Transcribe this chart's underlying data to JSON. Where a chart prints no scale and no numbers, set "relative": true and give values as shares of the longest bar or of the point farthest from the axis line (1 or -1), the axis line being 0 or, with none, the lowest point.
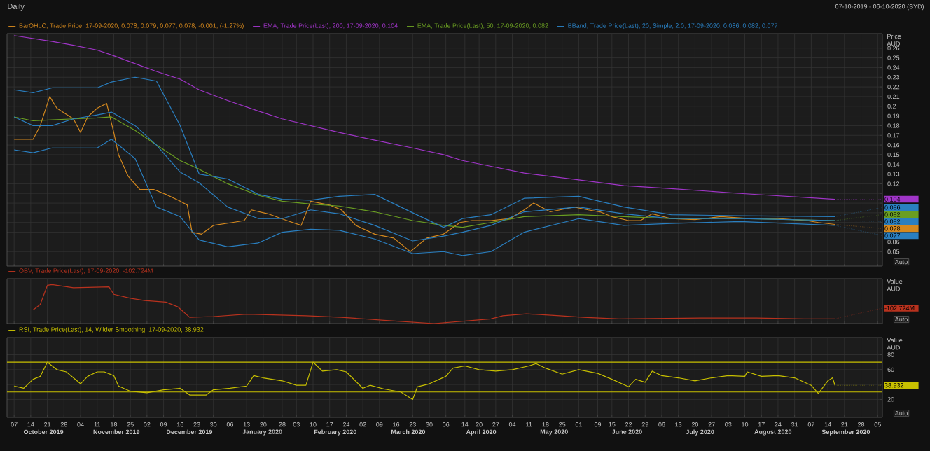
{
  "chart_data": [
    {
      "type": "line",
      "title": "Daily",
      "subtitle": "07-10-2019 - 06-10-2020 (SYD)",
      "ylabel": "Price AUD",
      "legend": "top left",
      "grid": true,
      "tick_labels": "y",
      "xlim": [
        "2019-10-04",
        "2020-10-07"
      ],
      "ylim": [
        0.035,
        0.275
      ],
      "xticks": [
        "2019-10-07",
        "2019-10-14",
        "2019-10-21",
        "2019-10-28",
        "2019-11-04",
        "2019-11-11",
        "2019-11-18",
        "2019-11-25",
        "2019-12-02",
        "2019-12-09",
        "2019-12-16",
        "2019-12-23",
        "2019-12-30",
        "2020-01-06",
        "2020-01-13",
        "2020-01-20",
        "2020-01-28",
        "2020-02-03",
        "2020-02-10",
        "2020-02-17",
        "2020-02-24",
        "2020-03-02",
        "2020-03-09",
        "2020-03-16",
        "2020-03-23",
        "2020-03-30",
        "2020-04-06",
        "2020-04-14",
        "2020-04-20",
        "2020-04-27",
        "2020-05-04",
        "2020-05-11",
        "2020-05-18",
        "2020-05-25",
        "2020-06-01",
        "2020-06-09",
        "2020-06-15",
        "2020-06-22",
        "2020-06-29",
        "2020-07-06",
        "2020-07-13",
        "2020-07-20",
        "2020-07-27",
        "2020-08-03",
        "2020-08-10",
        "2020-08-17",
        "2020-08-24",
        "2020-08-31",
        "2020-09-07",
        "2020-09-14",
        "2020-09-21",
        "2020-09-28",
        "2020-10-05"
      ],
      "yticks": [
        0.05,
        0.06,
        {
          "value": 0.07,
          "label": null
        },
        {
          "value": 0.08,
          "label": null
        },
        {
          "value": 0.09,
          "label": null
        },
        {
          "value": 0.1,
          "label": null
        },
        {
          "value": 0.11,
          "label": null
        },
        0.12,
        0.13,
        0.14,
        0.15,
        0.16,
        0.17,
        0.18,
        0.19,
        0.2,
        0.21,
        0.22,
        0.23,
        0.24,
        0.25,
        0.26
      ],
      "x": [
        "2019-10-07",
        "2019-10-15",
        "2019-10-23",
        "2019-11-01",
        "2019-11-11",
        "2019-11-17",
        "2019-11-27",
        "2019-12-06",
        "2019-12-16",
        "2019-12-24",
        "2020-01-05",
        "2020-01-18",
        "2020-01-28",
        "2020-02-09",
        "2020-02-21",
        "2020-03-07",
        "2020-03-23",
        "2020-04-05",
        "2020-04-13",
        "2020-04-25",
        "2020-05-09",
        "2020-06-01",
        "2020-06-20",
        "2020-07-10",
        "2020-08-08",
        "2020-09-17"
      ],
      "series": [
        {
          "name": "BarOHLC, Trade Price, 17-09-2020, 0.078, 0.079, 0.077, 0.078, -0.001, (-1.27%)",
          "color": "#d4881e",
          "x": [
            "2019-10-07",
            "2019-10-15",
            "2019-10-18",
            "2019-10-22",
            "2019-10-25",
            "2019-11-01",
            "2019-11-04",
            "2019-11-07",
            "2019-11-11",
            "2019-11-15",
            "2019-11-18",
            "2019-11-20",
            "2019-11-24",
            "2019-11-29",
            "2019-12-05",
            "2019-12-10",
            "2019-12-16",
            "2019-12-19",
            "2019-12-21",
            "2019-12-25",
            "2019-12-30",
            "2020-01-07",
            "2020-01-12",
            "2020-01-15",
            "2020-01-22",
            "2020-01-30",
            "2020-02-05",
            "2020-02-09",
            "2020-02-17",
            "2020-02-22",
            "2020-02-28",
            "2020-03-07",
            "2020-03-15",
            "2020-03-22",
            "2020-03-29",
            "2020-04-05",
            "2020-04-12",
            "2020-04-17",
            "2020-04-25",
            "2020-05-03",
            "2020-05-09",
            "2020-05-13",
            "2020-05-20",
            "2020-05-30",
            "2020-06-05",
            "2020-06-10",
            "2020-06-15",
            "2020-06-22",
            "2020-06-27",
            "2020-07-02",
            "2020-07-10",
            "2020-07-20",
            "2020-07-31",
            "2020-08-12",
            "2020-08-24",
            "2020-09-05",
            "2020-09-10",
            "2020-09-17"
          ],
          "values": [
            0.166,
            0.166,
            0.18,
            0.21,
            0.198,
            0.187,
            0.173,
            0.189,
            0.198,
            0.203,
            0.173,
            0.15,
            0.128,
            0.114,
            0.114,
            0.109,
            0.102,
            0.098,
            0.07,
            0.068,
            0.077,
            0.08,
            0.082,
            0.093,
            0.089,
            0.082,
            0.077,
            0.102,
            0.098,
            0.093,
            0.077,
            0.068,
            0.064,
            0.05,
            0.064,
            0.068,
            0.08,
            0.082,
            0.082,
            0.084,
            0.093,
            0.1,
            0.091,
            0.096,
            0.093,
            0.091,
            0.086,
            0.082,
            0.082,
            0.089,
            0.084,
            0.083,
            0.086,
            0.084,
            0.084,
            0.082,
            0.08,
            0.078
          ]
        },
        {
          "name": "EMA, Trade Price(Last), 200, 17-09-2020, 0.104",
          "color": "#a035c8",
          "values": [
            0.273,
            0.27,
            0.267,
            0.263,
            0.258,
            0.253,
            0.244,
            0.236,
            0.228,
            0.217,
            0.206,
            0.195,
            0.187,
            0.18,
            0.173,
            0.165,
            0.157,
            0.15,
            0.144,
            0.138,
            0.131,
            0.124,
            0.118,
            0.115,
            0.11,
            0.104
          ]
        },
        {
          "name": "EMA, Trade Price(Last), 50, 17-09-2020, 0.082",
          "color": "#6a9e22",
          "values": [
            0.189,
            0.185,
            0.186,
            0.187,
            0.188,
            0.189,
            0.175,
            0.16,
            0.144,
            0.135,
            0.12,
            0.108,
            0.102,
            0.099,
            0.097,
            0.091,
            0.082,
            0.077,
            0.075,
            0.08,
            0.086,
            0.088,
            0.086,
            0.084,
            0.084,
            0.082
          ]
        },
        {
          "name": "BBand, Trade Price(Last), 20, Simple, 2.0, 17-09-2020, 0.086, 0.082, 0.077",
          "color": "#2a7fc0",
          "values": [
            0.217,
            0.214,
            0.219,
            0.219,
            0.219,
            0.225,
            0.23,
            0.226,
            0.18,
            0.13,
            0.125,
            0.109,
            0.104,
            0.103,
            0.107,
            0.109,
            0.09,
            0.075,
            0.084,
            0.088,
            0.105,
            0.107,
            0.096,
            0.088,
            0.087,
            0.086
          ]
        },
        {
          "color": "#2a7fc0",
          "values": [
            0.189,
            0.18,
            0.18,
            0.187,
            0.191,
            0.194,
            0.18,
            0.16,
            0.132,
            0.121,
            0.096,
            0.084,
            0.084,
            0.093,
            0.089,
            0.077,
            0.061,
            0.066,
            0.07,
            0.077,
            0.091,
            0.096,
            0.089,
            0.084,
            0.084,
            0.082
          ]
        },
        {
          "color": "#2a7fc0",
          "values": [
            0.155,
            0.152,
            0.157,
            0.157,
            0.157,
            0.166,
            0.146,
            0.096,
            0.086,
            0.062,
            0.055,
            0.059,
            0.07,
            0.073,
            0.072,
            0.063,
            0.048,
            0.05,
            0.046,
            0.05,
            0.07,
            0.084,
            0.077,
            0.079,
            0.081,
            0.077
          ]
        }
      ],
      "annotations": [
        {
          "text": "0.104",
          "x": "2020-09-17",
          "y": 0.104
        },
        {
          "text": "0.086",
          "x": "2020-09-17",
          "y": 0.086
        },
        {
          "text": "0.082",
          "x": "2020-09-17",
          "y": 0.082
        },
        {
          "text": "0.082",
          "x": "2020-09-17",
          "y": 0.082
        },
        {
          "text": "0.078",
          "x": "2020-09-17",
          "y": 0.078
        },
        {
          "text": "0.077",
          "x": "2020-09-17",
          "y": 0.077
        },
        "Auto"
      ]
    },
    {
      "type": "line",
      "relative": true,
      "ylabel": "Value AUD",
      "legend": "top left",
      "grid": "x",
      "tick_labels": false,
      "xlim": [
        "2019-10-04",
        "2020-10-07"
      ],
      "xticks": [
        "2019-10-07",
        "2019-10-14",
        "2019-10-21",
        "2019-10-28",
        "2019-11-04",
        "2019-11-11",
        "2019-11-18",
        "2019-11-25",
        "2019-12-02",
        "2019-12-09",
        "2019-12-16",
        "2019-12-23",
        "2019-12-30",
        "2020-01-06",
        "2020-01-13",
        "2020-01-20",
        "2020-01-28",
        "2020-02-03",
        "2020-02-10",
        "2020-02-17",
        "2020-02-24",
        "2020-03-02",
        "2020-03-09",
        "2020-03-16",
        "2020-03-23",
        "2020-03-30",
        "2020-04-06",
        "2020-04-14",
        "2020-04-20",
        "2020-04-27",
        "2020-05-04",
        "2020-05-11",
        "2020-05-18",
        "2020-05-25",
        "2020-06-01",
        "2020-06-09",
        "2020-06-15",
        "2020-06-22",
        "2020-06-29",
        "2020-07-06",
        "2020-07-13",
        "2020-07-20",
        "2020-07-27",
        "2020-08-03",
        "2020-08-10",
        "2020-08-17",
        "2020-08-24",
        "2020-08-31",
        "2020-09-07",
        "2020-09-14",
        "2020-09-21",
        "2020-09-28",
        "2020-10-05"
      ],
      "series": [
        {
          "name": "OBV, Trade Price(Last), 17-09-2020, -102.724M",
          "color": "#b8321e",
          "x": [
            "2019-10-07",
            "2019-10-15",
            "2019-10-18",
            "2019-10-21",
            "2019-10-23",
            "2019-11-01",
            "2019-11-16",
            "2019-11-18",
            "2019-11-25",
            "2019-12-01",
            "2019-12-10",
            "2019-12-15",
            "2019-12-20",
            "2019-12-30",
            "2020-01-13",
            "2020-02-07",
            "2020-02-22",
            "2020-03-12",
            "2020-04-01",
            "2020-04-25",
            "2020-04-30",
            "2020-05-10",
            "2020-05-24",
            "2020-06-03",
            "2020-06-18",
            "2020-07-22",
            "2020-08-15",
            "2020-09-04",
            "2020-09-17"
          ],
          "values": [
            0.35,
            0.35,
            0.49,
            0.98,
            1.0,
            0.92,
            0.94,
            0.75,
            0.65,
            0.59,
            0.55,
            0.43,
            0.16,
            0.18,
            0.24,
            0.2,
            0.16,
            0.08,
            0.0,
            0.12,
            0.2,
            0.25,
            0.2,
            0.16,
            0.12,
            0.14,
            0.14,
            0.12,
            0.12
          ]
        }
      ],
      "annotations": [
        {
          "text": "-102.724M",
          "x": "2020-09-17",
          "y": 0.12
        },
        "Auto"
      ]
    },
    {
      "type": "line",
      "ylabel": "Value AUD",
      "legend": "top left",
      "grid": true,
      "xlim": [
        "2019-10-04",
        "2020-10-07"
      ],
      "ylim": [
        -4,
        103
      ],
      "xticks": [
        {
          "value": "2019-10-07",
          "label": "07"
        },
        {
          "value": "2019-10-14",
          "label": "14"
        },
        {
          "value": "2019-10-21",
          "label": "21"
        },
        {
          "value": "2019-10-28",
          "label": "28"
        },
        {
          "value": "2019-11-04",
          "label": "04"
        },
        {
          "value": "2019-11-11",
          "label": "11"
        },
        {
          "value": "2019-11-18",
          "label": "18"
        },
        {
          "value": "2019-11-25",
          "label": "25"
        },
        {
          "value": "2019-12-02",
          "label": "02"
        },
        {
          "value": "2019-12-09",
          "label": "09"
        },
        {
          "value": "2019-12-16",
          "label": "16"
        },
        {
          "value": "2019-12-23",
          "label": "23"
        },
        {
          "value": "2019-12-30",
          "label": "30"
        },
        {
          "value": "2020-01-06",
          "label": "06"
        },
        {
          "value": "2020-01-13",
          "label": "13"
        },
        {
          "value": "2020-01-20",
          "label": "20"
        },
        {
          "value": "2020-01-28",
          "label": "28"
        },
        {
          "value": "2020-02-03",
          "label": "03"
        },
        {
          "value": "2020-02-10",
          "label": "10"
        },
        {
          "value": "2020-02-17",
          "label": "17"
        },
        {
          "value": "2020-02-24",
          "label": "24"
        },
        {
          "value": "2020-03-02",
          "label": "02"
        },
        {
          "value": "2020-03-09",
          "label": "09"
        },
        {
          "value": "2020-03-16",
          "label": "16"
        },
        {
          "value": "2020-03-23",
          "label": "23"
        },
        {
          "value": "2020-03-30",
          "label": "30"
        },
        {
          "value": "2020-04-06",
          "label": "06"
        },
        {
          "value": "2020-04-14",
          "label": "14"
        },
        {
          "value": "2020-04-20",
          "label": "20"
        },
        {
          "value": "2020-04-27",
          "label": "27"
        },
        {
          "value": "2020-05-04",
          "label": "04"
        },
        {
          "value": "2020-05-11",
          "label": "11"
        },
        {
          "value": "2020-05-18",
          "label": "18"
        },
        {
          "value": "2020-05-25",
          "label": "25"
        },
        {
          "value": "2020-06-01",
          "label": "01"
        },
        {
          "value": "2020-06-09",
          "label": "09"
        },
        {
          "value": "2020-06-15",
          "label": "15"
        },
        {
          "value": "2020-06-22",
          "label": "22"
        },
        {
          "value": "2020-06-29",
          "label": "29"
        },
        {
          "value": "2020-07-06",
          "label": "06"
        },
        {
          "value": "2020-07-13",
          "label": "13"
        },
        {
          "value": "2020-07-20",
          "label": "20"
        },
        {
          "value": "2020-07-27",
          "label": "27"
        },
        {
          "value": "2020-08-03",
          "label": "03"
        },
        {
          "value": "2020-08-10",
          "label": "10"
        },
        {
          "value": "2020-08-17",
          "label": "17"
        },
        {
          "value": "2020-08-24",
          "label": "24"
        },
        {
          "value": "2020-08-31",
          "label": "31"
        },
        {
          "value": "2020-09-07",
          "label": "07"
        },
        {
          "value": "2020-09-14",
          "label": "14"
        },
        {
          "value": "2020-09-21",
          "label": "21"
        },
        {
          "value": "2020-09-28",
          "label": "28"
        },
        {
          "value": "2020-10-05",
          "label": "05"
        }
      ],
      "yticks": [
        20,
        {
          "value": 40,
          "label": null
        },
        60,
        80
      ],
      "series": [
        {
          "name": "RSI, Trade Price(Last), 14, Wilder Smoothing, 17-09-2020, 38.932",
          "color": "#c8c000",
          "x": [
            "2019-10-07",
            "2019-10-11",
            "2019-10-15",
            "2019-10-18",
            "2019-10-21",
            "2019-10-25",
            "2019-10-29",
            "2019-11-01",
            "2019-11-04",
            "2019-11-07",
            "2019-11-11",
            "2019-11-14",
            "2019-11-18",
            "2019-11-20",
            "2019-11-25",
            "2019-12-02",
            "2019-12-09",
            "2019-12-16",
            "2019-12-20",
            "2019-12-27",
            "2019-12-30",
            "2020-01-06",
            "2020-01-13",
            "2020-01-16",
            "2020-01-20",
            "2020-01-28",
            "2020-02-03",
            "2020-02-07",
            "2020-02-10",
            "2020-02-14",
            "2020-02-20",
            "2020-02-24",
            "2020-03-02",
            "2020-03-05",
            "2020-03-11",
            "2020-03-18",
            "2020-03-23",
            "2020-03-25",
            "2020-03-30",
            "2020-04-06",
            "2020-04-09",
            "2020-04-14",
            "2020-04-20",
            "2020-04-27",
            "2020-05-04",
            "2020-05-11",
            "2020-05-14",
            "2020-05-18",
            "2020-05-25",
            "2020-06-01",
            "2020-06-09",
            "2020-06-15",
            "2020-06-22",
            "2020-06-25",
            "2020-06-29",
            "2020-07-02",
            "2020-07-06",
            "2020-07-13",
            "2020-07-20",
            "2020-07-27",
            "2020-08-03",
            "2020-08-10",
            "2020-08-11",
            "2020-08-17",
            "2020-08-24",
            "2020-08-31",
            "2020-09-07",
            "2020-09-10",
            "2020-09-14",
            "2020-09-16",
            "2020-09-17"
          ],
          "values": [
            38,
            35,
            47,
            51,
            70,
            60,
            57,
            49,
            41,
            51,
            57,
            57,
            52,
            38,
            31,
            29,
            33,
            35,
            26,
            26,
            33,
            35,
            38,
            52,
            49,
            45,
            39,
            39,
            70,
            58,
            60,
            57,
            35,
            39,
            34,
            30,
            20,
            37,
            41,
            51,
            62,
            65,
            60,
            58,
            60,
            65,
            68,
            62,
            54,
            60,
            55,
            47,
            37,
            47,
            43,
            58,
            52,
            49,
            45,
            49,
            52,
            51,
            57,
            51,
            52,
            49,
            39,
            28,
            45,
            49,
            38.932
          ]
        }
      ],
      "ref_lines": [
        {
          "axis": "y",
          "value": 70,
          "color": "#c8c000"
        },
        {
          "axis": "y",
          "value": 30,
          "color": "#c8c000"
        }
      ],
      "annotations": [
        {
          "text": "38.932",
          "x": "2020-09-17",
          "y": 38.932
        },
        "October 2019",
        "November 2019",
        "December 2019",
        "January 2020",
        "February 2020",
        "March 2020",
        "April 2020",
        "May 2020",
        "June 2020",
        "July 2020",
        "August 2020",
        "September 2020",
        "Auto"
      ]
    }
  ]
}
